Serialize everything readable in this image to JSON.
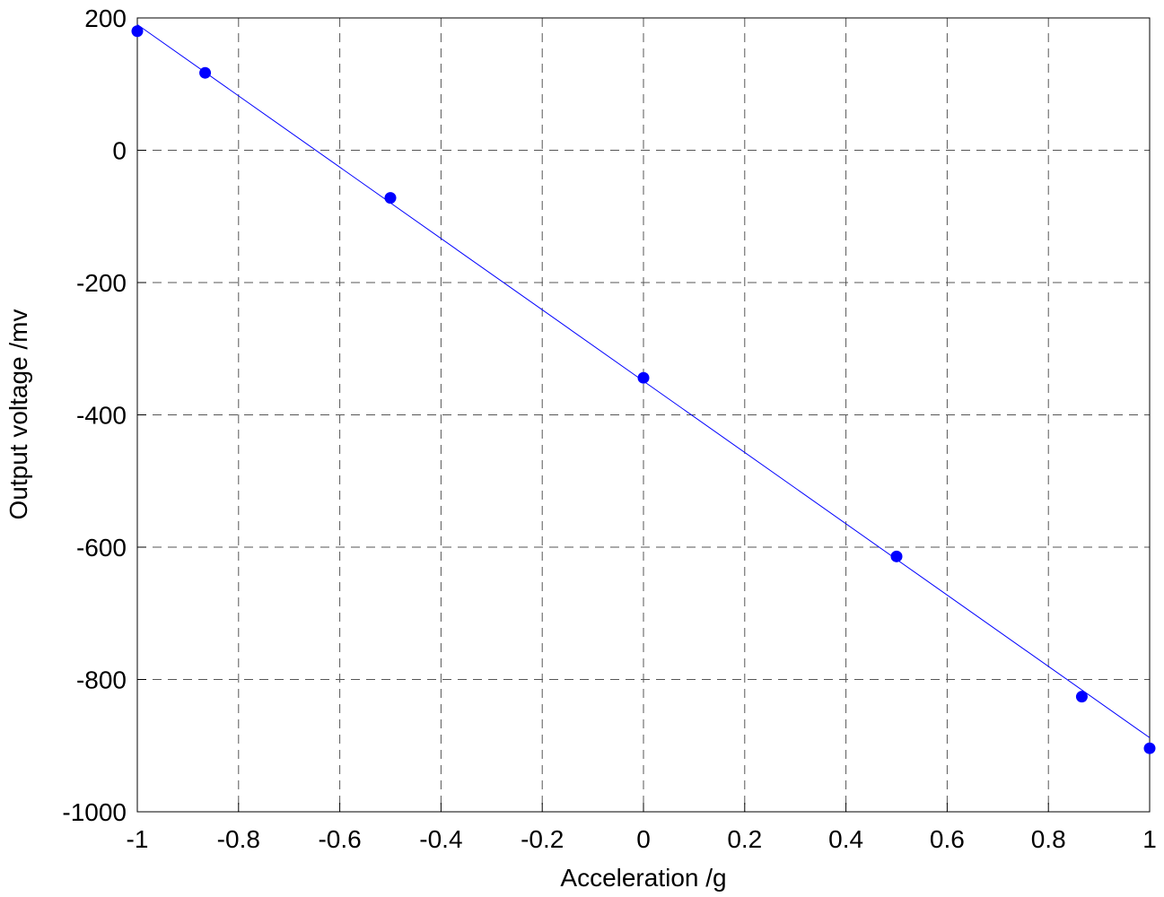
{
  "chart_data": {
    "type": "scatter",
    "xlabel": "Acceleration /g",
    "ylabel": "Output voltage /mv",
    "xlim": [
      -1,
      1
    ],
    "xticks": [
      -1,
      -0.8,
      -0.6,
      -0.4,
      -0.2,
      0,
      0.2,
      0.4,
      0.6,
      0.8,
      1
    ],
    "ylim": [
      -1000,
      200
    ],
    "yticks": [
      -1000,
      -800,
      -600,
      -400,
      -200,
      0,
      200
    ],
    "grid": true,
    "series": [
      {
        "mode": "markers",
        "color": "#0000ff",
        "x": [
          -1,
          -0.866,
          -0.5,
          0,
          0.5,
          0.866,
          1
        ],
        "values": [
          180,
          117,
          -72,
          -344,
          -614,
          -826,
          -904
        ]
      },
      {
        "mode": "line",
        "color": "#0000ff",
        "x": [
          -1,
          1
        ],
        "values": [
          190,
          -888
        ]
      }
    ]
  }
}
